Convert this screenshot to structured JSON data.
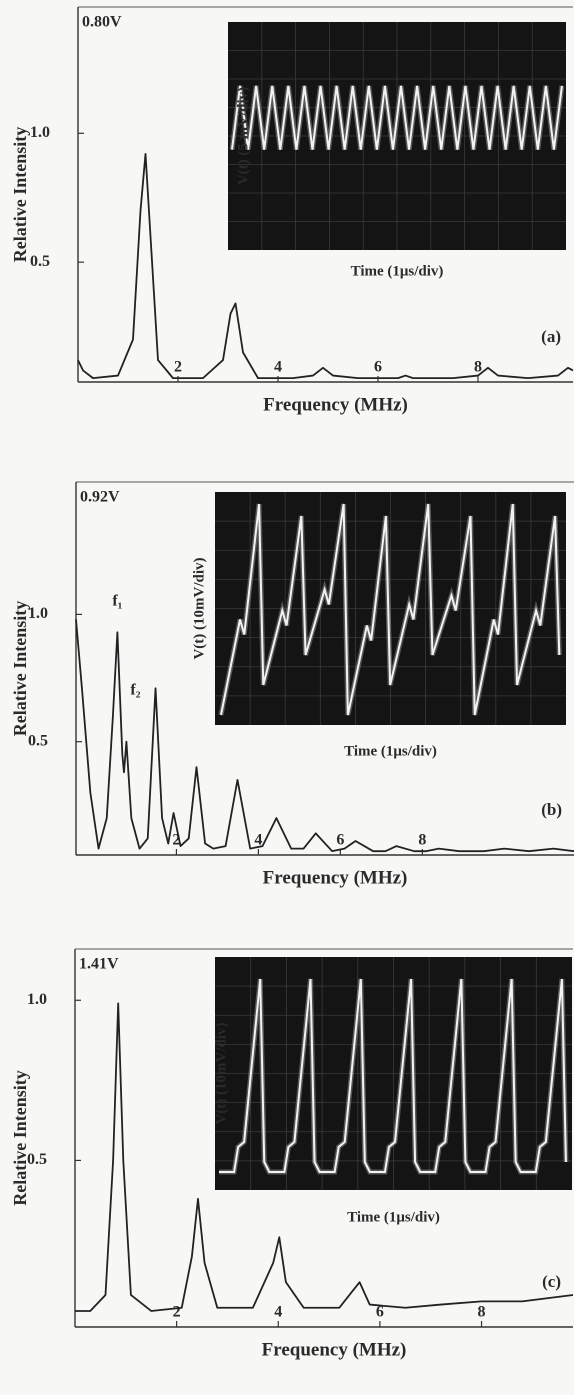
{
  "chart_data": [
    {
      "type": "line",
      "xlabel": "Frequency (MHz)",
      "ylabel": "Relative Intensity",
      "voltage_label": "0.80V",
      "panel_label": "(a)",
      "inset": {
        "ylabel": "V(t) (5 mV/div)",
        "xlabel": "Time (1μs/div)"
      },
      "color": "#222222",
      "xlim": [
        0,
        9.9
      ],
      "ylim": [
        0.035,
        1.49
      ],
      "xticks": [
        2,
        4,
        6,
        8
      ],
      "yticks": [
        0.5,
        {
          "value": 1,
          "label": "1.0"
        }
      ],
      "x": [
        0,
        0.1,
        0.3,
        0.8,
        1.1,
        1.25,
        1.35,
        1.45,
        1.6,
        1.9,
        2.5,
        2.9,
        3.05,
        3.15,
        3.3,
        3.6,
        4.3,
        4.7,
        4.9,
        5.1,
        5.6,
        6.4,
        6.55,
        6.7,
        7.5,
        8.0,
        8.2,
        8.4,
        9.0,
        9.6,
        9.8,
        9.9
      ],
      "values": [
        0.12,
        0.08,
        0.05,
        0.06,
        0.2,
        0.7,
        0.92,
        0.6,
        0.12,
        0.05,
        0.05,
        0.12,
        0.3,
        0.34,
        0.15,
        0.05,
        0.05,
        0.06,
        0.09,
        0.06,
        0.05,
        0.05,
        0.06,
        0.05,
        0.05,
        0.06,
        0.09,
        0.06,
        0.05,
        0.06,
        0.09,
        0.08
      ]
    },
    {
      "type": "line",
      "xlabel": "Frequency (MHz)",
      "ylabel": "Relative Intensity",
      "voltage_label": "0.92V",
      "panel_label": "(b)",
      "inset": {
        "ylabel": "V(t) (10mV/div)",
        "xlabel": "Time (1μs/div)"
      },
      "annotations": [
        {
          "text": "f₁",
          "x": 0.56,
          "y": 1.05
        },
        {
          "text": "f₂",
          "x": 1.0,
          "y": 0.7
        }
      ],
      "color": "#222222",
      "xlim": [
        -0.45,
        11.7
      ],
      "ylim": [
        0.055,
        1.52
      ],
      "xticks": [
        2,
        4,
        6,
        8
      ],
      "yticks": [
        0.5,
        {
          "value": 1,
          "label": "1.0"
        }
      ],
      "x": [
        -0.45,
        -0.3,
        -0.1,
        0.1,
        0.3,
        0.45,
        0.56,
        0.68,
        0.72,
        0.78,
        0.9,
        1.1,
        1.3,
        1.49,
        1.65,
        1.8,
        1.93,
        2.1,
        2.3,
        2.49,
        2.7,
        2.9,
        3.2,
        3.49,
        3.8,
        4.1,
        4.44,
        4.8,
        5.1,
        5.4,
        5.8,
        6.1,
        6.37,
        6.8,
        7.1,
        7.37,
        7.8,
        8.1,
        8.4,
        8.9,
        9.5,
        10,
        10.6,
        11.2,
        11.7
      ],
      "values": [
        0.98,
        0.7,
        0.3,
        0.08,
        0.2,
        0.6,
        0.93,
        0.45,
        0.38,
        0.5,
        0.2,
        0.08,
        0.12,
        0.71,
        0.2,
        0.1,
        0.22,
        0.09,
        0.12,
        0.4,
        0.1,
        0.08,
        0.09,
        0.35,
        0.08,
        0.09,
        0.2,
        0.08,
        0.08,
        0.14,
        0.07,
        0.08,
        0.11,
        0.07,
        0.07,
        0.09,
        0.07,
        0.07,
        0.08,
        0.07,
        0.07,
        0.08,
        0.07,
        0.08,
        0.07
      ]
    },
    {
      "type": "line",
      "xlabel": "Frequency (MHz)",
      "ylabel": "Relative Intensity",
      "voltage_label": "1.41V",
      "panel_label": "(c)",
      "inset": {
        "ylabel": "V(t) (10mV/div)",
        "xlabel": "Time (1μs/div)"
      },
      "color": "#222222",
      "xlim": [
        0,
        9.8
      ],
      "ylim": [
        -0.02,
        1.16
      ],
      "xticks": [
        2,
        4,
        6,
        8
      ],
      "yticks": [
        0.5,
        {
          "value": 1,
          "label": "1.0"
        }
      ],
      "x": [
        0,
        0.3,
        0.6,
        0.75,
        0.85,
        0.95,
        1.1,
        1.5,
        2.1,
        2.3,
        2.42,
        2.55,
        2.8,
        3.5,
        3.9,
        4.02,
        4.15,
        4.5,
        5.2,
        5.5,
        5.6,
        5.8,
        6.5,
        7.2,
        8.0,
        8.8,
        9.8
      ],
      "values": [
        0.03,
        0.03,
        0.08,
        0.5,
        0.99,
        0.5,
        0.08,
        0.03,
        0.04,
        0.2,
        0.38,
        0.18,
        0.04,
        0.04,
        0.18,
        0.26,
        0.12,
        0.04,
        0.04,
        0.1,
        0.12,
        0.05,
        0.04,
        0.05,
        0.06,
        0.06,
        0.08
      ]
    }
  ]
}
